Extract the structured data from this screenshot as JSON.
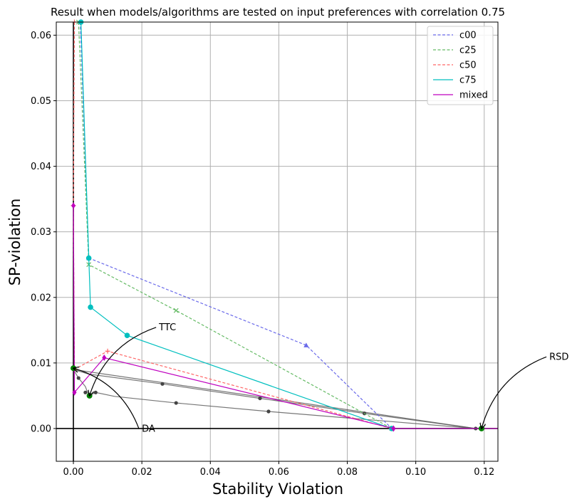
{
  "chart_data": {
    "type": "line",
    "title": "Result when models/algorithms are tested on input preferences with correlation 0.75",
    "xlabel": "Stability Violation",
    "ylabel": "SP-violation",
    "xlim": [
      -0.005,
      0.124
    ],
    "ylim": [
      -0.005,
      0.062
    ],
    "xticks": [
      0.0,
      0.02,
      0.04,
      0.06,
      0.08,
      0.1,
      0.12
    ],
    "xtick_labels": [
      "0.00",
      "0.02",
      "0.04",
      "0.06",
      "0.08",
      "0.10",
      "0.12"
    ],
    "yticks": [
      0.0,
      0.01,
      0.02,
      0.03,
      0.04,
      0.05,
      0.06
    ],
    "ytick_labels": [
      "0.00",
      "0.01",
      "0.02",
      "0.03",
      "0.04",
      "0.05",
      "0.06"
    ],
    "grid": true,
    "legend_position": "top-right",
    "series": [
      {
        "name": "c00",
        "color": "#6a6aea",
        "style": "dashed",
        "marker": "triangle",
        "x": [
          0.002,
          0.0045,
          0.068,
          0.093
        ],
        "y": [
          0.062,
          0.026,
          0.0127,
          0.0
        ]
      },
      {
        "name": "c25",
        "color": "#66bb66",
        "style": "dashed",
        "marker": "x",
        "x": [
          0.0015,
          0.0045,
          0.03,
          0.093
        ],
        "y": [
          0.062,
          0.025,
          0.018,
          0.0
        ]
      },
      {
        "name": "c50",
        "color": "#ff6666",
        "style": "dashed",
        "marker": "plus",
        "x": [
          0.0003,
          0.0,
          0.0003,
          0.01,
          0.093
        ],
        "y": [
          0.062,
          0.034,
          0.009,
          0.0118,
          0.0
        ]
      },
      {
        "name": "c75",
        "color": "#00bfbf",
        "style": "solid",
        "marker": "circle",
        "x": [
          0.0022,
          0.0045,
          0.005,
          0.0157,
          0.093
        ],
        "y": [
          0.062,
          0.026,
          0.0185,
          0.0142,
          0.0
        ]
      },
      {
        "name": "mixed",
        "color": "#bf00bf",
        "style": "solid",
        "marker": "diamond",
        "x": [
          0.0,
          0.0003,
          0.009,
          0.0935
        ],
        "y": [
          0.034,
          0.0055,
          0.0108,
          0.0
        ]
      }
    ],
    "frontier_lines": [
      {
        "color": "#555555",
        "x": [
          0.0,
          0.0015,
          0.0035,
          0.0045,
          0.0065,
          0.012,
          0.03,
          0.057,
          0.1175
        ],
        "y": [
          0.009,
          0.0077,
          0.0064,
          0.005,
          0.0055,
          0.0049,
          0.0039,
          0.0026,
          0.0
        ]
      },
      {
        "color": "#555555",
        "x": [
          0.0,
          0.0045,
          0.026,
          0.0545,
          0.085,
          0.1175
        ],
        "y": [
          0.009,
          0.0083,
          0.0068,
          0.0046,
          0.0023,
          0.0
        ]
      },
      {
        "color": "#555555",
        "x": [
          0.0,
          0.1175
        ],
        "y": [
          0.009,
          0.0
        ]
      }
    ],
    "gray_points": {
      "x": [
        0.0015,
        0.0035,
        0.0065,
        0.026,
        0.03,
        0.0545,
        0.057,
        0.085,
        0.1175
      ],
      "y": [
        0.0077,
        0.0055,
        0.0055,
        0.0068,
        0.0039,
        0.0046,
        0.0026,
        0.0023,
        0.0
      ]
    },
    "green_points": {
      "x": [
        0.0,
        0.0047,
        0.1192
      ],
      "y": [
        0.0092,
        0.005,
        0.0
      ]
    },
    "annotations": [
      {
        "text": "TTC",
        "point": [
          0.0047,
          0.005
        ],
        "text_pos": [
          0.025,
          0.015
        ]
      },
      {
        "text": "DA",
        "point": [
          0.0,
          0.0092
        ],
        "text_pos": [
          0.02,
          -0.0005
        ]
      },
      {
        "text": "RSD",
        "point": [
          0.1192,
          0.0
        ],
        "text_pos": [
          0.139,
          0.0105
        ]
      }
    ]
  }
}
